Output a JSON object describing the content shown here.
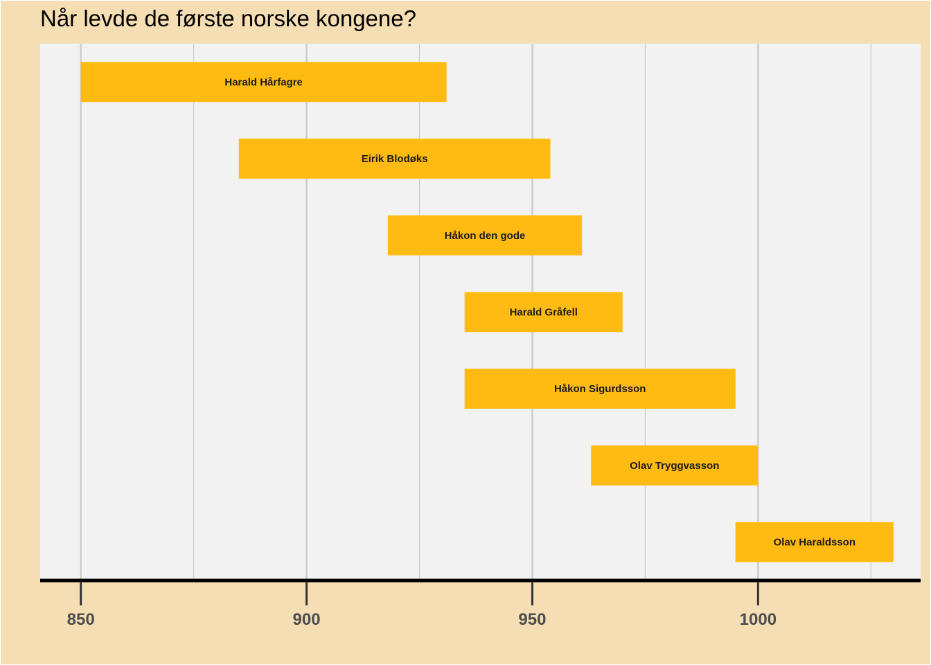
{
  "chart_data": {
    "type": "bar",
    "orientation": "horizontal-range",
    "title": "Når levde de første norske kongene?",
    "xlabel": "",
    "ylabel": "",
    "xlim": [
      841,
      1036
    ],
    "xticks": [
      850,
      900,
      950,
      1000
    ],
    "grid": true,
    "legend": "none",
    "colors": {
      "background": "#f5deb3",
      "panel": "#f2f2f2",
      "bar": "#ffbb11",
      "grid": "#cccccc",
      "axis": "#000000",
      "tick_label": "#4d4d4d"
    },
    "bars": [
      {
        "label": "Harald Hårfagre",
        "start": 850,
        "end": 931
      },
      {
        "label": "Eirik Blodøks",
        "start": 885,
        "end": 954
      },
      {
        "label": "Håkon den gode",
        "start": 918,
        "end": 961
      },
      {
        "label": "Harald Gråfell",
        "start": 935,
        "end": 970
      },
      {
        "label": "Håkon Sigurdsson",
        "start": 935,
        "end": 995
      },
      {
        "label": "Olav Tryggvasson",
        "start": 963,
        "end": 1000
      },
      {
        "label": "Olav Haraldsson",
        "start": 995,
        "end": 1030
      }
    ]
  }
}
